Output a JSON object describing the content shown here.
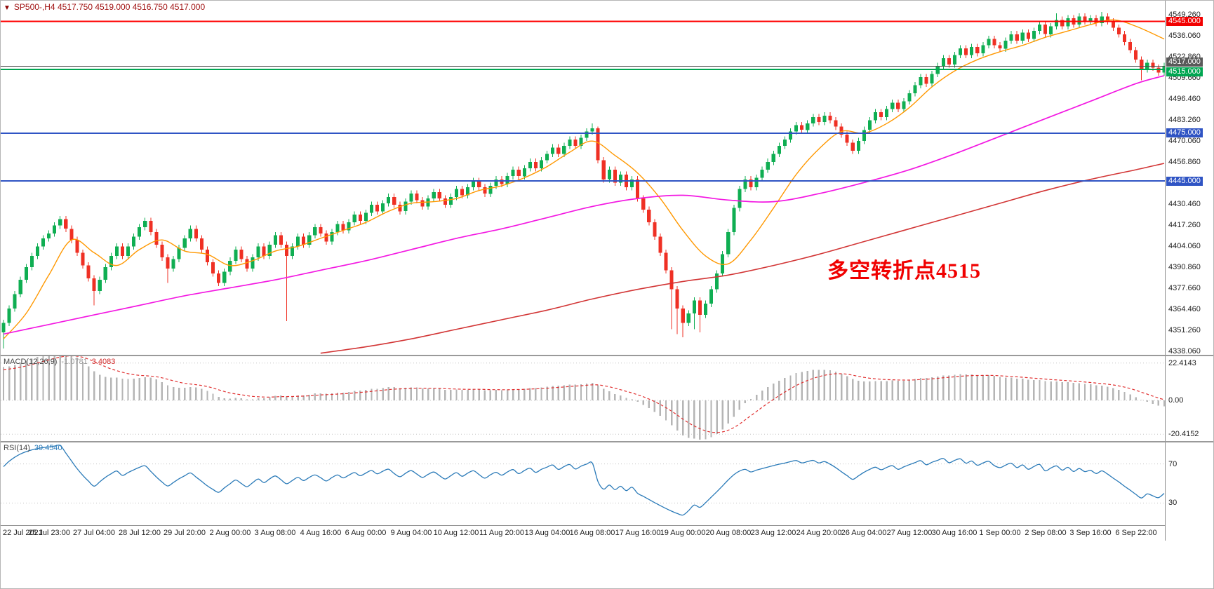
{
  "header": {
    "marker": "▼",
    "title": "SP500-,H4  4517.750 4519.000 4516.750 4517.000"
  },
  "chart_data": {
    "type": "candlestick",
    "symbol": "SP500-",
    "timeframe": "H4",
    "ohlc": {
      "open": 4517.75,
      "high": 4519.0,
      "low": 4516.75,
      "close": 4517.0
    },
    "x_tick_labels": [
      "22 Jul 2021",
      "25 Jul 23:00",
      "27 Jul 04:00",
      "28 Jul 12:00",
      "29 Jul 20:00",
      "2 Aug 00:00",
      "3 Aug 08:00",
      "4 Aug 16:00",
      "6 Aug 00:00",
      "9 Aug 04:00",
      "10 Aug 12:00",
      "11 Aug 20:00",
      "13 Aug 04:00",
      "16 Aug 08:00",
      "17 Aug 16:00",
      "19 Aug 00:00",
      "20 Aug 08:00",
      "23 Aug 12:00",
      "24 Aug 20:00",
      "26 Aug 04:00",
      "27 Aug 12:00",
      "30 Aug 16:00",
      "1 Sep 00:00",
      "2 Sep 08:00",
      "3 Sep 16:00",
      "6 Sep 22:00"
    ],
    "candles_per_tick": 8,
    "first_open": 4350,
    "default_wick": 2,
    "up_color": "#0fae52",
    "down_color": "#ef3024",
    "closes": [
      4356,
      4365,
      4374,
      4383,
      4391,
      4398,
      4404,
      4409,
      4412,
      4417,
      4421,
      4415,
      4408,
      4400,
      4392,
      4384,
      4376,
      4383,
      4391,
      4398,
      4404,
      4398,
      4404,
      4410,
      4416,
      4420,
      4413,
      4405,
      4397,
      4390,
      4396,
      4403,
      4409,
      4415,
      4409,
      4402,
      4394,
      4387,
      4381,
      4388,
      4395,
      4402,
      4396,
      4390,
      4397,
      4404,
      4398,
      4405,
      4411,
      4405,
      4398,
      4404,
      4410,
      4405,
      4411,
      4416,
      4412,
      4407,
      4413,
      4418,
      4414,
      4419,
      4424,
      4420,
      4425,
      4430,
      4426,
      4431,
      4435,
      4430,
      4426,
      4432,
      4437,
      4433,
      4429,
      4434,
      4438,
      4434,
      4430,
      4435,
      4440,
      4436,
      4441,
      4445,
      4441,
      4437,
      4442,
      4446,
      4443,
      4448,
      4452,
      4448,
      4453,
      4457,
      4453,
      4458,
      4462,
      4466,
      4462,
      4467,
      4471,
      4467,
      4472,
      4476,
      4478,
      4458,
      4446,
      4452,
      4444,
      4449,
      4441,
      4446,
      4434,
      4427,
      4419,
      4410,
      4400,
      4389,
      4377,
      4365,
      4356,
      4362,
      4370,
      4361,
      4368,
      4377,
      4387,
      4399,
      4413,
      4428,
      4440,
      4446,
      4441,
      4447,
      4452,
      4457,
      4462,
      4467,
      4471,
      4476,
      4480,
      4477,
      4481,
      4485,
      4482,
      4486,
      4483,
      4479,
      4474,
      4469,
      4464,
      4470,
      4477,
      4483,
      4488,
      4485,
      4490,
      4494,
      4490,
      4495,
      4500,
      4505,
      4510,
      4506,
      4512,
      4517,
      4522,
      4518,
      4524,
      4528,
      4524,
      4529,
      4525,
      4530,
      4534,
      4530,
      4528,
      4533,
      4537,
      4533,
      4538,
      4534,
      4539,
      4543,
      4537,
      4542,
      4546,
      4542,
      4547,
      4543,
      4548,
      4545,
      4547,
      4544,
      4548,
      4545,
      4541,
      4537,
      4532,
      4527,
      4521,
      4515,
      4519,
      4516,
      4513,
      4517
    ],
    "wick_overrides": {
      "0": [
        null,
        4340
      ],
      "16": [
        null,
        4367
      ],
      "29": [
        null,
        4381
      ],
      "50": [
        4407,
        4357
      ],
      "104": [
        4481,
        null
      ],
      "105": [
        4479,
        null
      ],
      "118": [
        null,
        4352
      ],
      "119": [
        null,
        4349
      ],
      "120": [
        null,
        4347
      ],
      "122": [
        null,
        4352
      ],
      "123": [
        null,
        4350
      ],
      "186": [
        4550,
        null
      ],
      "191": [
        4550,
        null
      ],
      "194": [
        4551,
        null
      ],
      "201": [
        null,
        4508
      ]
    },
    "price_axis": {
      "min": 4336,
      "max": 4558,
      "tick_start": 4549.26,
      "tick_step": 13.2,
      "tick_labels": [
        "4549.260",
        "4536.060",
        "4522.860",
        "4509.660",
        "4496.460",
        "4483.260",
        "4470.060",
        "4456.860",
        "4443.660",
        "4430.460",
        "4417.260",
        "4404.060",
        "4390.860",
        "4377.660",
        "4364.460",
        "4351.260",
        "4338.060"
      ]
    },
    "hlines": [
      {
        "price": 4545,
        "color": "#ff0000",
        "width": 2,
        "badge": "4545.000",
        "badge_bg": "#f20000",
        "badge_dy": 0
      },
      {
        "price": 4517,
        "color": "#4c4c4c",
        "width": 1,
        "badge": "4517.000",
        "badge_bg": "#5a5a5a",
        "badge_dy": -6
      },
      {
        "price": 4515,
        "color": "#00a651",
        "width": 2,
        "badge": "4515.000",
        "badge_bg": "#00a651",
        "badge_dy": 4
      },
      {
        "price": 4475,
        "color": "#2f54c4",
        "width": 2,
        "badge": "4475.000",
        "badge_bg": "#2f54c4",
        "badge_dy": 0
      },
      {
        "price": 4445,
        "color": "#2f54c4",
        "width": 2,
        "badge": "4445.000",
        "badge_bg": "#2f54c4",
        "badge_dy": 0
      }
    ],
    "moving_averages": [
      {
        "name": "ma-fast-orange",
        "color": "#ff9800",
        "width": 1.4,
        "anchors": [
          [
            0,
            4346
          ],
          [
            4,
            4362
          ],
          [
            8,
            4386
          ],
          [
            12,
            4408
          ],
          [
            16,
            4400
          ],
          [
            20,
            4392
          ],
          [
            24,
            4402
          ],
          [
            28,
            4408
          ],
          [
            32,
            4401
          ],
          [
            36,
            4399
          ],
          [
            40,
            4392
          ],
          [
            44,
            4395
          ],
          [
            48,
            4401
          ],
          [
            52,
            4404
          ],
          [
            56,
            4409
          ],
          [
            60,
            4414
          ],
          [
            64,
            4419
          ],
          [
            68,
            4426
          ],
          [
            72,
            4431
          ],
          [
            76,
            4432
          ],
          [
            80,
            4434
          ],
          [
            84,
            4439
          ],
          [
            88,
            4442
          ],
          [
            92,
            4447
          ],
          [
            96,
            4454
          ],
          [
            100,
            4463
          ],
          [
            104,
            4470
          ],
          [
            108,
            4461
          ],
          [
            112,
            4450
          ],
          [
            116,
            4434
          ],
          [
            120,
            4414
          ],
          [
            124,
            4398
          ],
          [
            128,
            4393
          ],
          [
            132,
            4408
          ],
          [
            136,
            4428
          ],
          [
            140,
            4449
          ],
          [
            144,
            4465
          ],
          [
            148,
            4476
          ],
          [
            152,
            4475
          ],
          [
            156,
            4481
          ],
          [
            160,
            4491
          ],
          [
            164,
            4504
          ],
          [
            168,
            4514
          ],
          [
            172,
            4521
          ],
          [
            176,
            4526
          ],
          [
            180,
            4530
          ],
          [
            184,
            4535
          ],
          [
            188,
            4539
          ],
          [
            192,
            4543
          ],
          [
            196,
            4546
          ],
          [
            200,
            4542
          ],
          [
            205,
            4534
          ]
        ]
      },
      {
        "name": "ma-mid-magenta",
        "color": "#f318e2",
        "width": 1.7,
        "anchors": [
          [
            0,
            4349
          ],
          [
            8,
            4355
          ],
          [
            16,
            4361
          ],
          [
            24,
            4367
          ],
          [
            32,
            4373
          ],
          [
            40,
            4378
          ],
          [
            48,
            4383
          ],
          [
            56,
            4389
          ],
          [
            64,
            4395
          ],
          [
            72,
            4402
          ],
          [
            80,
            4409
          ],
          [
            88,
            4415
          ],
          [
            96,
            4422
          ],
          [
            104,
            4429
          ],
          [
            112,
            4434
          ],
          [
            120,
            4436
          ],
          [
            128,
            4433
          ],
          [
            136,
            4432
          ],
          [
            144,
            4437
          ],
          [
            152,
            4444
          ],
          [
            160,
            4452
          ],
          [
            168,
            4462
          ],
          [
            176,
            4473
          ],
          [
            184,
            4484
          ],
          [
            192,
            4495
          ],
          [
            200,
            4506
          ],
          [
            205,
            4511
          ]
        ]
      },
      {
        "name": "ma-slow-red",
        "color": "#d23535",
        "width": 1.6,
        "anchors": [
          [
            56,
            4337
          ],
          [
            64,
            4341
          ],
          [
            72,
            4346
          ],
          [
            80,
            4352
          ],
          [
            88,
            4358
          ],
          [
            96,
            4364
          ],
          [
            104,
            4371
          ],
          [
            112,
            4377
          ],
          [
            120,
            4382
          ],
          [
            128,
            4386
          ],
          [
            136,
            4392
          ],
          [
            144,
            4399
          ],
          [
            152,
            4407
          ],
          [
            160,
            4415
          ],
          [
            168,
            4423
          ],
          [
            176,
            4431
          ],
          [
            184,
            4439
          ],
          [
            192,
            4446
          ],
          [
            200,
            4452
          ],
          [
            205,
            4456
          ]
        ]
      }
    ],
    "annotation": {
      "text": "多空转折点4515",
      "color": "#f00000",
      "x": 1178,
      "y": 360
    },
    "macd": {
      "label": "MACD(12,26,9)",
      "value_main": "-1.0781",
      "value_signal": "3.4083",
      "ema_fast": 12,
      "ema_slow": 26,
      "signal": 9,
      "seed_fast": 4338,
      "seed_slow": 4318,
      "seed_signal": 18,
      "ylim": [
        -24.5,
        26.5
      ],
      "axis_labels": [
        {
          "value": 22.4143,
          "text": "22.4143"
        },
        {
          "value": 0,
          "text": "0.00"
        },
        {
          "value": -20.4152,
          "text": "-20.4152"
        }
      ],
      "hist_color": "#b5b5b5",
      "signal_color": "#e03030"
    },
    "rsi": {
      "label": "RSI(14)",
      "value": "39.4540",
      "period": 14,
      "seed_gain": 2.0,
      "seed_loss": 1.2,
      "ylim": [
        8,
        92
      ],
      "levels": [
        {
          "value": 70,
          "text": "70"
        },
        {
          "value": 30,
          "text": "30"
        }
      ],
      "line_color": "#2a7ab8"
    }
  }
}
